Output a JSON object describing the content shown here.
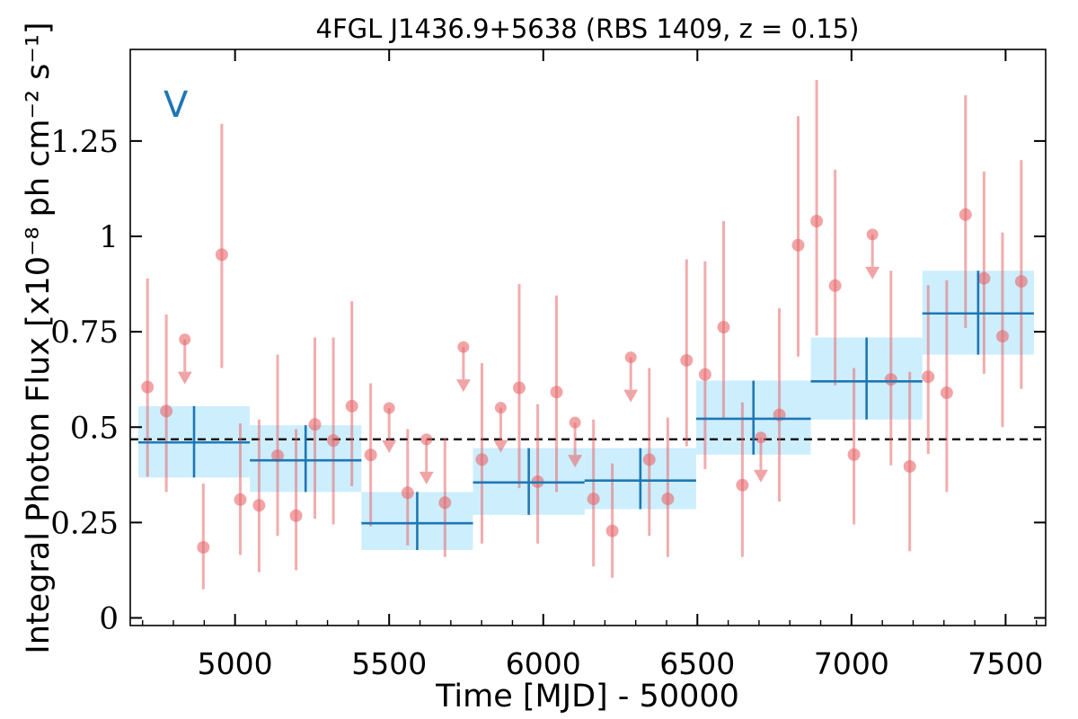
{
  "chart_data": {
    "type": "scatter",
    "title": "4FGL J1436.9+5638 (RBS 1409, z = 0.15)",
    "panel_label": "V",
    "xlabel": "Time [MJD] - 50000",
    "ylabel": "Integral Photon Flux [x10⁻⁸ ph cm⁻² s⁻¹]",
    "xlim": [
      4660,
      7630
    ],
    "ylim": [
      -0.02,
      1.49
    ],
    "xticks": [
      5000,
      5500,
      6000,
      6500,
      7000,
      7500
    ],
    "xtick_labels": [
      "5000",
      "5500",
      "6000",
      "6500",
      "7000",
      "7500"
    ],
    "yticks": [
      0,
      0.25,
      0.5,
      0.75,
      1,
      1.25
    ],
    "ytick_labels": [
      "0",
      "0.25",
      "0.5",
      "0.75",
      "1",
      "1.25"
    ],
    "mean_flux": 0.468,
    "colors": {
      "points": "#e8686b",
      "bins": "#1f77b4",
      "bin_band": "#cdeefd",
      "mean_line": "#000000"
    },
    "monthly_points": [
      {
        "x": 4716,
        "y": 0.605,
        "lo": 0.37,
        "hi": 0.89
      },
      {
        "x": 4777,
        "y": 0.542,
        "lo": 0.33,
        "hi": 0.795
      },
      {
        "x": 4897,
        "y": 0.185,
        "lo": 0.075,
        "hi": 0.352
      },
      {
        "x": 4957,
        "y": 0.952,
        "lo": 0.655,
        "hi": 1.295
      },
      {
        "x": 5017,
        "y": 0.31,
        "lo": 0.165,
        "hi": 0.51
      },
      {
        "x": 5078,
        "y": 0.295,
        "lo": 0.12,
        "hi": 0.52
      },
      {
        "x": 5138,
        "y": 0.425,
        "lo": 0.215,
        "hi": 0.69
      },
      {
        "x": 5198,
        "y": 0.268,
        "lo": 0.125,
        "hi": 0.495
      },
      {
        "x": 5259,
        "y": 0.507,
        "lo": 0.26,
        "hi": 0.735
      },
      {
        "x": 5319,
        "y": 0.465,
        "lo": 0.245,
        "hi": 0.735
      },
      {
        "x": 5379,
        "y": 0.555,
        "lo": 0.345,
        "hi": 0.83
      },
      {
        "x": 5440,
        "y": 0.427,
        "lo": 0.24,
        "hi": 0.615
      },
      {
        "x": 5560,
        "y": 0.328,
        "lo": 0.19,
        "hi": 0.495
      },
      {
        "x": 5681,
        "y": 0.302,
        "lo": 0.16,
        "hi": 0.47
      },
      {
        "x": 5801,
        "y": 0.415,
        "lo": 0.195,
        "hi": 0.668
      },
      {
        "x": 5922,
        "y": 0.603,
        "lo": 0.34,
        "hi": 0.875
      },
      {
        "x": 5982,
        "y": 0.357,
        "lo": 0.195,
        "hi": 0.56
      },
      {
        "x": 6043,
        "y": 0.592,
        "lo": 0.33,
        "hi": 0.845
      },
      {
        "x": 6163,
        "y": 0.312,
        "lo": 0.135,
        "hi": 0.52
      },
      {
        "x": 6224,
        "y": 0.228,
        "lo": 0.105,
        "hi": 0.405
      },
      {
        "x": 6344,
        "y": 0.415,
        "lo": 0.215,
        "hi": 0.655
      },
      {
        "x": 6404,
        "y": 0.312,
        "lo": 0.16,
        "hi": 0.525
      },
      {
        "x": 6465,
        "y": 0.675,
        "lo": 0.45,
        "hi": 0.94
      },
      {
        "x": 6525,
        "y": 0.638,
        "lo": 0.39,
        "hi": 0.935
      },
      {
        "x": 6585,
        "y": 0.762,
        "lo": 0.525,
        "hi": 1.04
      },
      {
        "x": 6646,
        "y": 0.348,
        "lo": 0.16,
        "hi": 0.565
      },
      {
        "x": 6766,
        "y": 0.532,
        "lo": 0.305,
        "hi": 0.812
      },
      {
        "x": 6827,
        "y": 0.977,
        "lo": 0.685,
        "hi": 1.315
      },
      {
        "x": 6887,
        "y": 1.04,
        "lo": 0.74,
        "hi": 1.41
      },
      {
        "x": 6947,
        "y": 0.871,
        "lo": 0.61,
        "hi": 1.175
      },
      {
        "x": 7008,
        "y": 0.428,
        "lo": 0.245,
        "hi": 0.655
      },
      {
        "x": 7128,
        "y": 0.625,
        "lo": 0.4,
        "hi": 0.91
      },
      {
        "x": 7189,
        "y": 0.397,
        "lo": 0.175,
        "hi": 0.645
      },
      {
        "x": 7249,
        "y": 0.632,
        "lo": 0.43,
        "hi": 0.872
      },
      {
        "x": 7309,
        "y": 0.59,
        "lo": 0.33,
        "hi": 0.885
      },
      {
        "x": 7370,
        "y": 1.057,
        "lo": 0.76,
        "hi": 1.37
      },
      {
        "x": 7430,
        "y": 0.89,
        "lo": 0.64,
        "hi": 1.17
      },
      {
        "x": 7490,
        "y": 0.738,
        "lo": 0.5,
        "hi": 1.01
      },
      {
        "x": 7551,
        "y": 0.882,
        "lo": 0.6,
        "hi": 1.2
      }
    ],
    "upper_limits": [
      {
        "x": 4837,
        "y": 0.73
      },
      {
        "x": 5500,
        "y": 0.55
      },
      {
        "x": 5621,
        "y": 0.468
      },
      {
        "x": 5741,
        "y": 0.71
      },
      {
        "x": 5862,
        "y": 0.551
      },
      {
        "x": 6103,
        "y": 0.512
      },
      {
        "x": 6284,
        "y": 0.683
      },
      {
        "x": 6706,
        "y": 0.473
      },
      {
        "x": 7068,
        "y": 1.005
      }
    ],
    "yearly_bins": [
      {
        "x0": 4686,
        "x1": 5048,
        "y": 0.46,
        "lo": 0.368,
        "hi": 0.555
      },
      {
        "x0": 5048,
        "x1": 5410,
        "y": 0.413,
        "lo": 0.33,
        "hi": 0.505
      },
      {
        "x0": 5410,
        "x1": 5772,
        "y": 0.248,
        "lo": 0.178,
        "hi": 0.33
      },
      {
        "x0": 5772,
        "x1": 6134,
        "y": 0.355,
        "lo": 0.27,
        "hi": 0.445
      },
      {
        "x0": 6134,
        "x1": 6496,
        "y": 0.36,
        "lo": 0.285,
        "hi": 0.445
      },
      {
        "x0": 6496,
        "x1": 6868,
        "y": 0.522,
        "lo": 0.428,
        "hi": 0.622
      },
      {
        "x0": 6868,
        "x1": 7230,
        "y": 0.62,
        "lo": 0.52,
        "hi": 0.735
      },
      {
        "x0": 7230,
        "x1": 7592,
        "y": 0.798,
        "lo": 0.69,
        "hi": 0.91
      }
    ]
  }
}
